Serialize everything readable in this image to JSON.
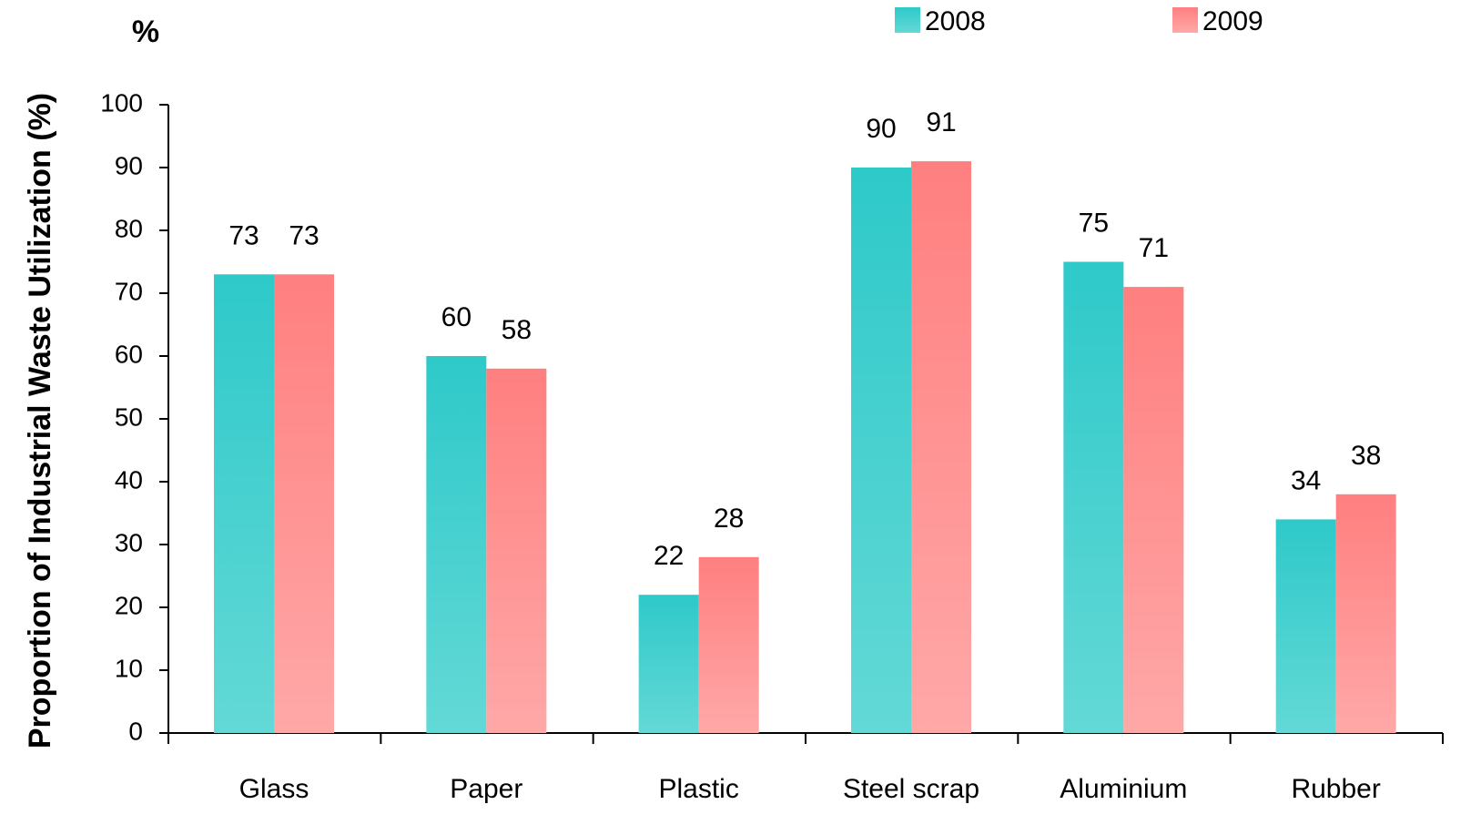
{
  "colors": {
    "series_2008_top": "#2ec9c9",
    "series_2008_bottom": "#63d9d6",
    "series_2009_top": "#ff7f7f",
    "series_2009_bottom": "#ffa8a8",
    "axis": "#000000"
  },
  "chart_data": {
    "type": "bar",
    "unit_label": "%",
    "ylabel": "Proportion of Industrial Waste Utilization (%)",
    "xlabel": "",
    "categories": [
      "Glass",
      "Paper",
      "Plastic",
      "Steel scrap",
      "Aluminium",
      "Rubber"
    ],
    "series": [
      {
        "name": "2008",
        "values": [
          73,
          60,
          22,
          90,
          75,
          34
        ]
      },
      {
        "name": "2009",
        "values": [
          73,
          58,
          28,
          91,
          71,
          38
        ]
      }
    ],
    "ylim": [
      0,
      100
    ],
    "yticks": [
      0,
      10,
      20,
      30,
      40,
      50,
      60,
      70,
      80,
      90,
      100
    ],
    "grid": false,
    "legend_position": "top-right",
    "data_labels": true
  }
}
